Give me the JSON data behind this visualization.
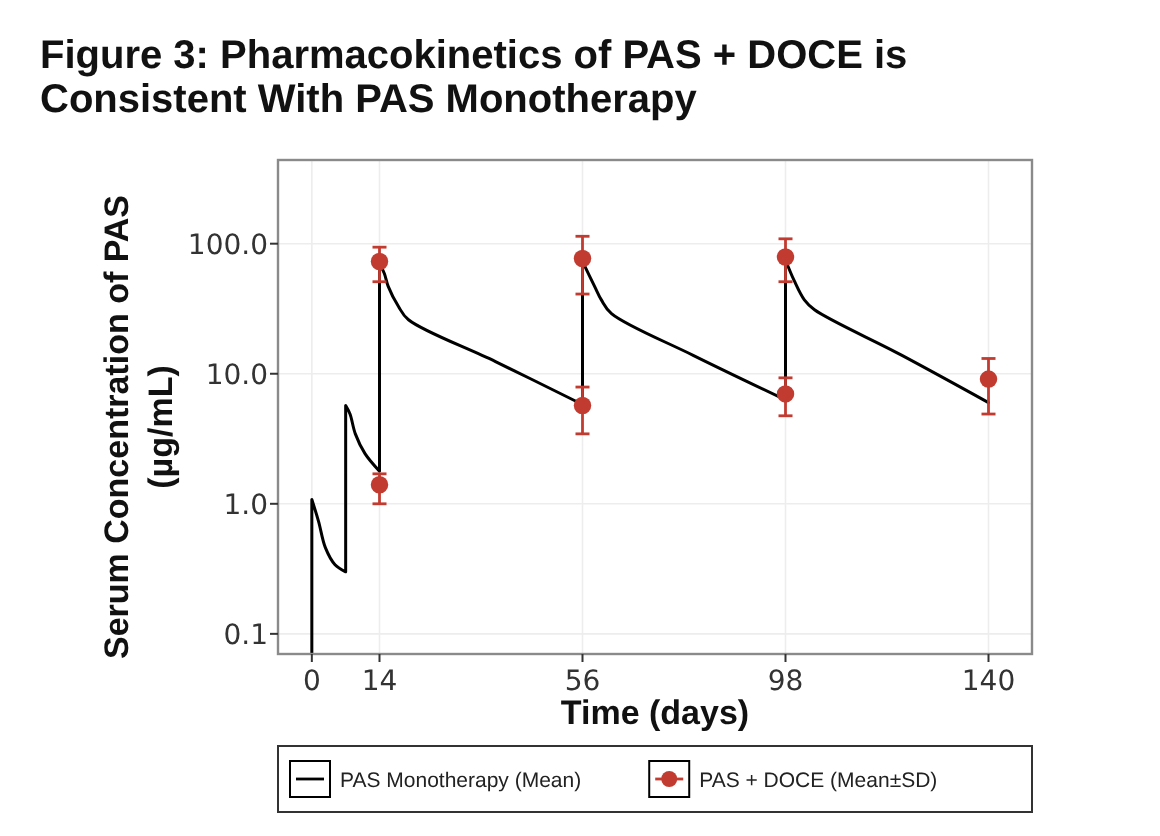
{
  "chart_data": {
    "type": "line",
    "title": "Figure 3: Pharmacokinetics of PAS + DOCE is\nConsistent With PAS Monotherapy",
    "xlabel": "Time (days)",
    "ylabel": "Serum Concentration of PAS\n(µg/mL)",
    "xlim": [
      -7,
      149
    ],
    "xticks": [
      0,
      14,
      56,
      98,
      140
    ],
    "ylim": [
      0.07,
      440
    ],
    "yticks": [
      0.1,
      {
        "value": 1,
        "label": "1.0"
      },
      {
        "value": 10,
        "label": "10.0"
      },
      {
        "value": 100,
        "label": "100.0"
      }
    ],
    "log": "y",
    "grid": true,
    "legend": "bottom",
    "series": [
      {
        "name": "PAS Monotherapy (Mean)",
        "type": "line",
        "color": "#000000",
        "marker": "none",
        "x": [
          0,
          0,
          1.4,
          2.8,
          4.8,
          7,
          7,
          7.9,
          9,
          11,
          14,
          14,
          15,
          15.8,
          17.9,
          20,
          38,
          56,
          56,
          58.5,
          59.9,
          62,
          79,
          98,
          98,
          99.8,
          101.9,
          104,
          122,
          140
        ],
        "values": [
          0.07,
          1.08,
          0.73,
          0.46,
          0.34,
          0.3,
          5.7,
          4.9,
          3.45,
          2.43,
          1.78,
          70,
          59,
          47,
          33,
          26,
          12.4,
          5.8,
          73,
          47,
          37,
          29,
          13.8,
          6.3,
          75,
          52,
          37,
          31,
          13.9,
          6
        ]
      },
      {
        "name": "PAS + DOCE (Mean±SD)",
        "type": "scatter",
        "color": "#c23b30",
        "marker": "circle",
        "x": [
          14,
          14,
          56,
          56,
          98,
          98,
          140
        ],
        "values": [
          1.4,
          73,
          5.7,
          77,
          7,
          79,
          9.1
        ],
        "errors": [
          [
            1.0,
            1.7
          ],
          [
            51,
            94
          ],
          [
            3.45,
            7.9
          ],
          [
            41,
            114
          ],
          [
            4.75,
            9.3
          ],
          [
            51,
            109
          ],
          [
            4.9,
            13.1
          ]
        ]
      }
    ]
  }
}
